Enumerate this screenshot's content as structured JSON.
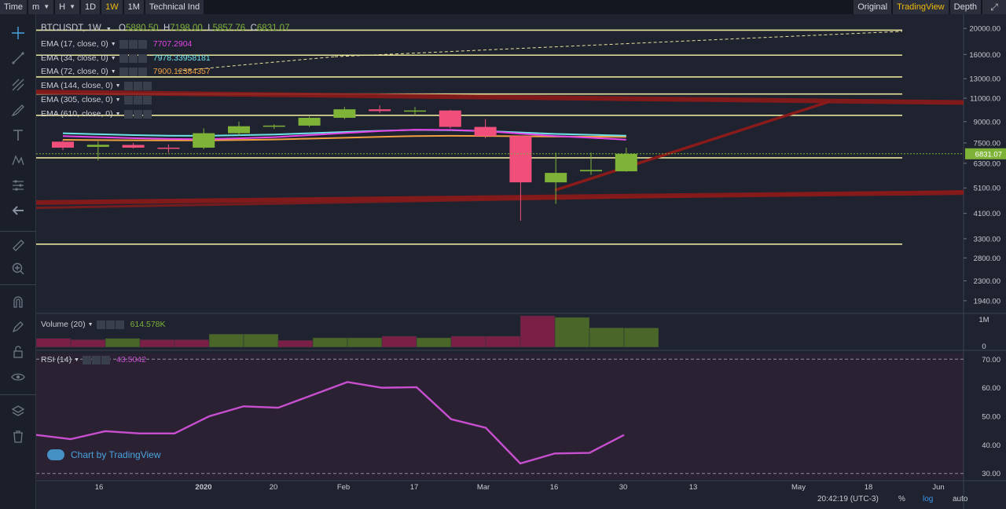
{
  "toolbar": {
    "time_label": "Time",
    "minute_label": "m",
    "hour_label": "H",
    "day_label": "1D",
    "week_label": "1W",
    "month_label": "1M",
    "indicators_label": "Technical Ind",
    "original_label": "Original",
    "tradingview_label": "TradingView",
    "depth_label": "Depth"
  },
  "legend": {
    "symbol": "BTCUSDT, 1W",
    "open_label": "O",
    "open": "5880.50",
    "high_label": "H",
    "high": "7198.00",
    "low_label": "L",
    "low": "5857.76",
    "close_label": "C",
    "close": "6831.07",
    "ema": [
      {
        "label": "EMA (17, close, 0)",
        "value": "7707.2904",
        "color": "#e545e8"
      },
      {
        "label": "EMA (34, close, 0)",
        "value": "7978.33958181",
        "color": "#6ee3e8"
      },
      {
        "label": "EMA (72, close, 0)",
        "value": "7900.12384357",
        "color": "#f0a040"
      },
      {
        "label": "EMA (144, close, 0)",
        "value": "",
        "color": ""
      },
      {
        "label": "EMA (305, close, 0)",
        "value": "",
        "color": ""
      },
      {
        "label": "EMA (610, close, 0)",
        "value": "",
        "color": ""
      }
    ],
    "volume_label": "Volume (20)",
    "volume_value": "614.578K",
    "rsi_label": "RSI (14)",
    "rsi_value": "43.5042"
  },
  "watermark": "Chart by TradingView",
  "footer": {
    "clock": "20:42:19 (UTC-3)",
    "percent_label": "%",
    "log_label": "log",
    "auto_label": "auto"
  },
  "colors": {
    "up": "#7fb338",
    "down": "#ef4f7a",
    "ema17": "#e545e8",
    "ema34": "#6ee3e8",
    "ema72": "#f0a040",
    "hline": "#e8e39a",
    "trend": "#8b1a1a",
    "rsi": "#c84fd0",
    "price_tag": "#7fb338"
  },
  "chart_data": [
    {
      "type": "candlestick",
      "title": "BTCUSDT, 1W",
      "scale": "log",
      "y_ticks": [
        20000,
        16000,
        13000,
        11000,
        9000,
        7500,
        6300,
        5100,
        4100,
        3300,
        2800,
        2300,
        1940
      ],
      "x_ticks": [
        "16",
        "2020",
        "20",
        "Feb",
        "17",
        "Mar",
        "16",
        "30",
        "13",
        "May",
        "18",
        "Jun"
      ],
      "last_price": "6831.07",
      "candles": [
        {
          "o": 7580,
          "h": 7700,
          "l": 7050,
          "c": 7200
        },
        {
          "o": 7250,
          "h": 7600,
          "l": 6450,
          "c": 7380
        },
        {
          "o": 7370,
          "h": 7500,
          "l": 7150,
          "c": 7200
        },
        {
          "o": 7200,
          "h": 7400,
          "l": 6900,
          "c": 7180
        },
        {
          "o": 7200,
          "h": 8500,
          "l": 7100,
          "c": 8150
        },
        {
          "o": 8150,
          "h": 9000,
          "l": 8000,
          "c": 8650
        },
        {
          "o": 8650,
          "h": 8800,
          "l": 8450,
          "c": 8700
        },
        {
          "o": 8700,
          "h": 9400,
          "l": 8600,
          "c": 9300
        },
        {
          "o": 9300,
          "h": 10200,
          "l": 9200,
          "c": 10000
        },
        {
          "o": 10000,
          "h": 10350,
          "l": 9700,
          "c": 9850
        },
        {
          "o": 9850,
          "h": 10200,
          "l": 9500,
          "c": 9900
        },
        {
          "o": 9900,
          "h": 9950,
          "l": 8500,
          "c": 8600
        },
        {
          "o": 8600,
          "h": 9200,
          "l": 7800,
          "c": 7950
        },
        {
          "o": 7950,
          "h": 7980,
          "l": 3850,
          "c": 5350
        },
        {
          "o": 5350,
          "h": 6900,
          "l": 4450,
          "c": 5800
        },
        {
          "o": 5880,
          "h": 6900,
          "l": 5700,
          "c": 5950
        },
        {
          "o": 5880,
          "h": 7198,
          "l": 5857.76,
          "c": 6831.07
        }
      ],
      "ema17": [
        7950,
        7880,
        7810,
        7760,
        7740,
        7800,
        7880,
        8020,
        8160,
        8300,
        8400,
        8380,
        8300,
        8120,
        7950,
        7840,
        7707
      ],
      "ema34": [
        8150,
        8080,
        8020,
        7980,
        7970,
        8010,
        8060,
        8150,
        8240,
        8320,
        8380,
        8360,
        8300,
        8200,
        8100,
        8040,
        7978
      ],
      "ema72": [
        7700,
        7680,
        7670,
        7660,
        7660,
        7690,
        7720,
        7780,
        7840,
        7900,
        7950,
        7970,
        7960,
        7940,
        7920,
        7910,
        7900
      ],
      "horizontal_levels": [
        19700,
        15900,
        13200,
        11400,
        9500,
        6600,
        3150
      ]
    },
    {
      "type": "bar",
      "title": "Volume (20)",
      "y_ticks": [
        "1M",
        "0"
      ],
      "values": [
        0.28,
        0.24,
        0.28,
        0.24,
        0.24,
        0.42,
        0.42,
        0.22,
        0.3,
        0.3,
        0.35,
        0.3,
        0.35,
        0.35,
        1.0,
        0.95,
        0.62,
        0.6145
      ],
      "up": [
        false,
        false,
        true,
        false,
        false,
        true,
        true,
        false,
        true,
        true,
        false,
        true,
        false,
        false,
        false,
        true,
        true,
        true
      ]
    },
    {
      "type": "line",
      "title": "RSI (14)",
      "y_ticks": [
        70,
        60,
        50,
        40,
        30
      ],
      "ylim": [
        28,
        72
      ],
      "values": [
        43.5,
        42,
        44.8,
        44,
        44,
        50,
        53.5,
        53,
        57.5,
        62,
        60,
        60.2,
        49,
        46,
        33.5,
        37,
        37.2,
        43.5
      ]
    }
  ]
}
